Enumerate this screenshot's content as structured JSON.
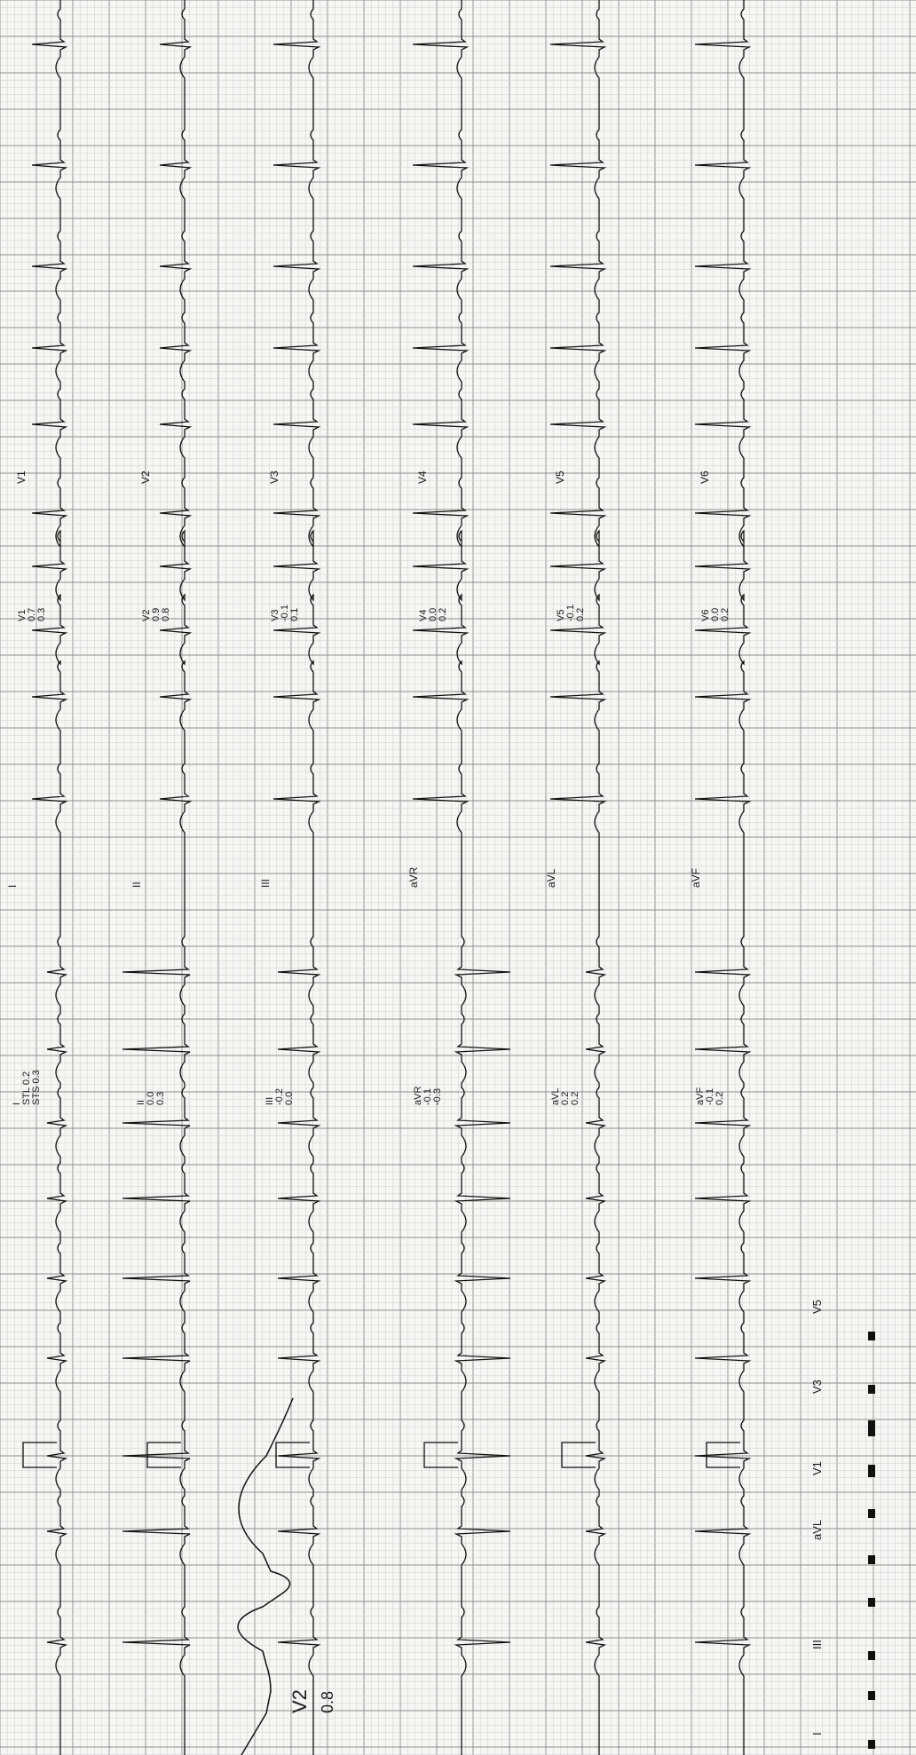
{
  "grid": {
    "paper_color": "#f6f6f3",
    "minor_color": "#c9c9c9",
    "major_color": "#8e8e8e",
    "trace_color": "#111111"
  },
  "top_leads": [
    {
      "lead": "V1",
      "right_label": "V1",
      "values": [
        "V1",
        "0.7",
        "0.3"
      ]
    },
    {
      "lead": "V2",
      "right_label": "V2",
      "values": [
        "V2",
        "0.9",
        "0.8"
      ]
    },
    {
      "lead": "V3",
      "right_label": "V3",
      "values": [
        "V3",
        "-0.1",
        "0.1"
      ]
    },
    {
      "lead": "V4",
      "right_label": "V4",
      "values": [
        "V4",
        "0.0",
        "0.2"
      ]
    },
    {
      "lead": "V5",
      "right_label": "V5",
      "values": [
        "V5",
        "-0.1",
        "0.2"
      ]
    },
    {
      "lead": "V6",
      "right_label": "V6",
      "values": [
        "V6",
        "0.0",
        "0.2"
      ]
    }
  ],
  "limb_leads": [
    {
      "lead": "I",
      "label": "I",
      "values": [
        "I",
        "STL 0.2",
        "STS 0.3"
      ]
    },
    {
      "lead": "II",
      "label": "II",
      "values": [
        "II",
        "0.0",
        "0.3"
      ]
    },
    {
      "lead": "III",
      "label": "III",
      "values": [
        "III",
        "-0.2",
        "0.0"
      ]
    },
    {
      "lead": "aVR",
      "label": "aVR",
      "values": [
        "aVR",
        "-0.1",
        "-0.3"
      ]
    },
    {
      "lead": "aVL",
      "label": "aVL",
      "values": [
        "aVL",
        "0.2",
        "0.2"
      ]
    },
    {
      "lead": "aVF",
      "label": "aVF",
      "values": [
        "aVF",
        "-0.1",
        "0.2"
      ]
    }
  ],
  "zoom": {
    "lead": "V2",
    "value": "0.8"
  },
  "bottom_labels": [
    "I",
    "III",
    "aVL",
    "V1",
    "V3",
    "V5"
  ]
}
